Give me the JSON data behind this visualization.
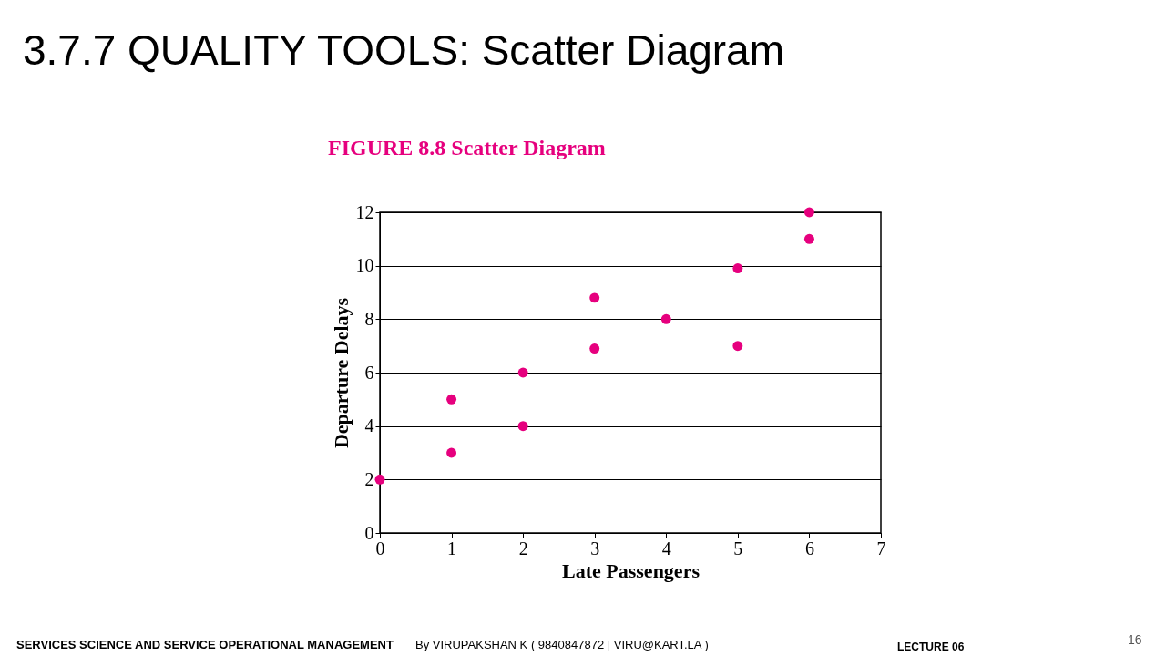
{
  "chart_data": {
    "type": "scatter",
    "title": "3.7.7 QUALITY TOOLS: Scatter Diagram",
    "subtitle": "FIGURE 8.8  Scatter Diagram",
    "xlabel": "Late Passengers",
    "ylabel": "Departure Delays",
    "x": [
      0,
      1,
      1,
      2,
      2,
      3,
      3,
      4,
      5,
      5,
      6,
      6
    ],
    "series": [
      {
        "color": "#e6007e",
        "values": [
          2,
          5,
          3,
          6,
          4,
          8.8,
          6.9,
          8,
          9.9,
          7,
          11,
          12
        ]
      }
    ],
    "xlim": [
      0,
      7
    ],
    "ylim": [
      0,
      12
    ],
    "xticks": [
      0,
      1,
      2,
      3,
      4,
      5,
      6,
      7
    ],
    "yticks": [
      0,
      2,
      4,
      6,
      8,
      10,
      12
    ],
    "grid": "y",
    "marker": "circle",
    "annotations": [
      "SERVICES SCIENCE AND SERVICE OPERATIONAL MANAGEMENT",
      "By VIRUPAKSHAN K ( 9840847872 | VIRU@KART.LA )",
      "LECTURE 06",
      "16"
    ]
  }
}
